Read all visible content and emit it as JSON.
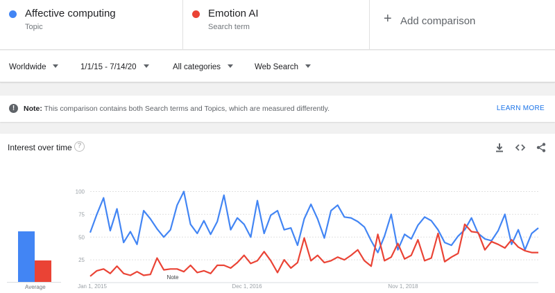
{
  "terms": [
    {
      "name": "Affective computing",
      "type": "Topic",
      "color": "#4285f4"
    },
    {
      "name": "Emotion AI",
      "type": "Search term",
      "color": "#ea4335"
    }
  ],
  "add_comparison": "Add comparison",
  "filters": {
    "region": "Worldwide",
    "date_range": "1/1/15 - 7/14/20",
    "category": "All categories",
    "search_type": "Web Search"
  },
  "note": {
    "label": "Note:",
    "text": " This comparison contains both Search terms and Topics, which are measured differently.",
    "link": "LEARN MORE"
  },
  "interest": {
    "title": "Interest over time",
    "average_label": "Average",
    "averages": [
      62,
      26
    ],
    "icons": [
      "download-icon",
      "embed-code-icon",
      "share-icon"
    ]
  },
  "chart_data": {
    "type": "line",
    "ylim": [
      0,
      100
    ],
    "y_ticks": [
      "100",
      "75",
      "50",
      "25"
    ],
    "x_labels": [
      "Jan 1, 2015",
      "Dec 1, 2016",
      "Nov 1, 2018"
    ],
    "annotation": "Note",
    "grid": true,
    "series": [
      {
        "name": "Affective computing",
        "color": "#4285f4",
        "values": [
          55,
          75,
          93,
          57,
          81,
          44,
          56,
          42,
          79,
          70,
          59,
          50,
          58,
          85,
          100,
          64,
          54,
          68,
          53,
          67,
          96,
          58,
          71,
          64,
          50,
          90,
          54,
          74,
          79,
          58,
          60,
          41,
          70,
          86,
          70,
          49,
          79,
          85,
          72,
          71,
          67,
          61,
          46,
          33,
          51,
          75,
          36,
          53,
          48,
          63,
          72,
          68,
          58,
          44,
          41,
          51,
          58,
          71,
          54,
          48,
          46,
          57,
          75,
          42,
          58,
          36,
          54,
          60
        ]
      },
      {
        "name": "Emotion AI",
        "color": "#ea4335",
        "values": [
          7,
          13,
          15,
          10,
          18,
          10,
          8,
          12,
          8,
          9,
          27,
          14,
          15,
          15,
          12,
          19,
          11,
          13,
          10,
          19,
          19,
          16,
          22,
          30,
          21,
          24,
          34,
          24,
          11,
          25,
          16,
          22,
          49,
          24,
          30,
          22,
          24,
          28,
          25,
          30,
          36,
          24,
          18,
          53,
          24,
          28,
          43,
          26,
          30,
          47,
          24,
          27,
          54,
          23,
          28,
          32,
          64,
          56,
          55,
          36,
          45,
          42,
          38,
          47,
          39,
          35,
          33,
          33
        ]
      }
    ]
  }
}
